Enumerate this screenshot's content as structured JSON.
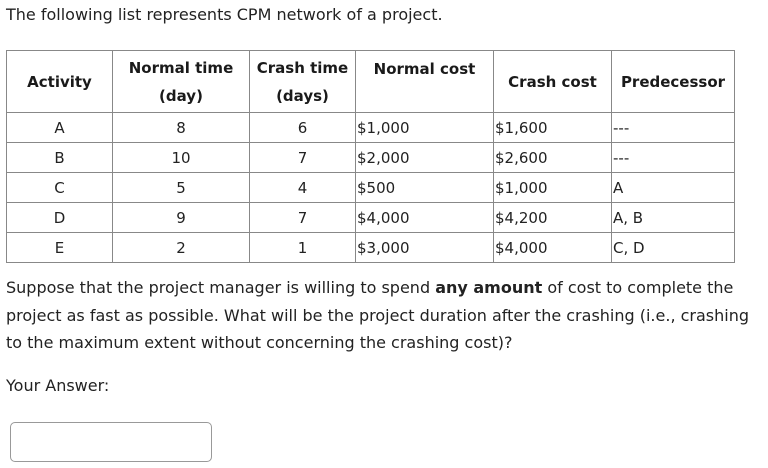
{
  "intro": "The following list represents CPM network of a project.",
  "table": {
    "headers": [
      [
        "Activity",
        ""
      ],
      [
        "Normal time",
        "(day)"
      ],
      [
        "Crash time",
        "(days)"
      ],
      [
        "Normal cost",
        ""
      ],
      [
        "Crash cost",
        ""
      ],
      [
        "Predecessor",
        ""
      ]
    ],
    "rows": [
      [
        "A",
        "8",
        "6",
        "$1,000",
        "$1,600",
        "---"
      ],
      [
        "B",
        "10",
        "7",
        "$2,000",
        "$2,600",
        "---"
      ],
      [
        "C",
        "5",
        "4",
        "$500",
        "$1,000",
        "A"
      ],
      [
        "D",
        "9",
        "7",
        "$4,000",
        "$4,200",
        "A, B"
      ],
      [
        "E",
        "2",
        "1",
        "$3,000",
        "$4,000",
        "C, D"
      ]
    ]
  },
  "question": {
    "before": "Suppose that the project manager is willing to spend ",
    "bold": "any amount",
    "after": " of cost to complete the project as fast as possible. What will be the project duration after the crashing (i.e., crashing to the maximum extent without concerning the crashing cost)?"
  },
  "answer": {
    "label": "Your Answer:",
    "value": ""
  }
}
